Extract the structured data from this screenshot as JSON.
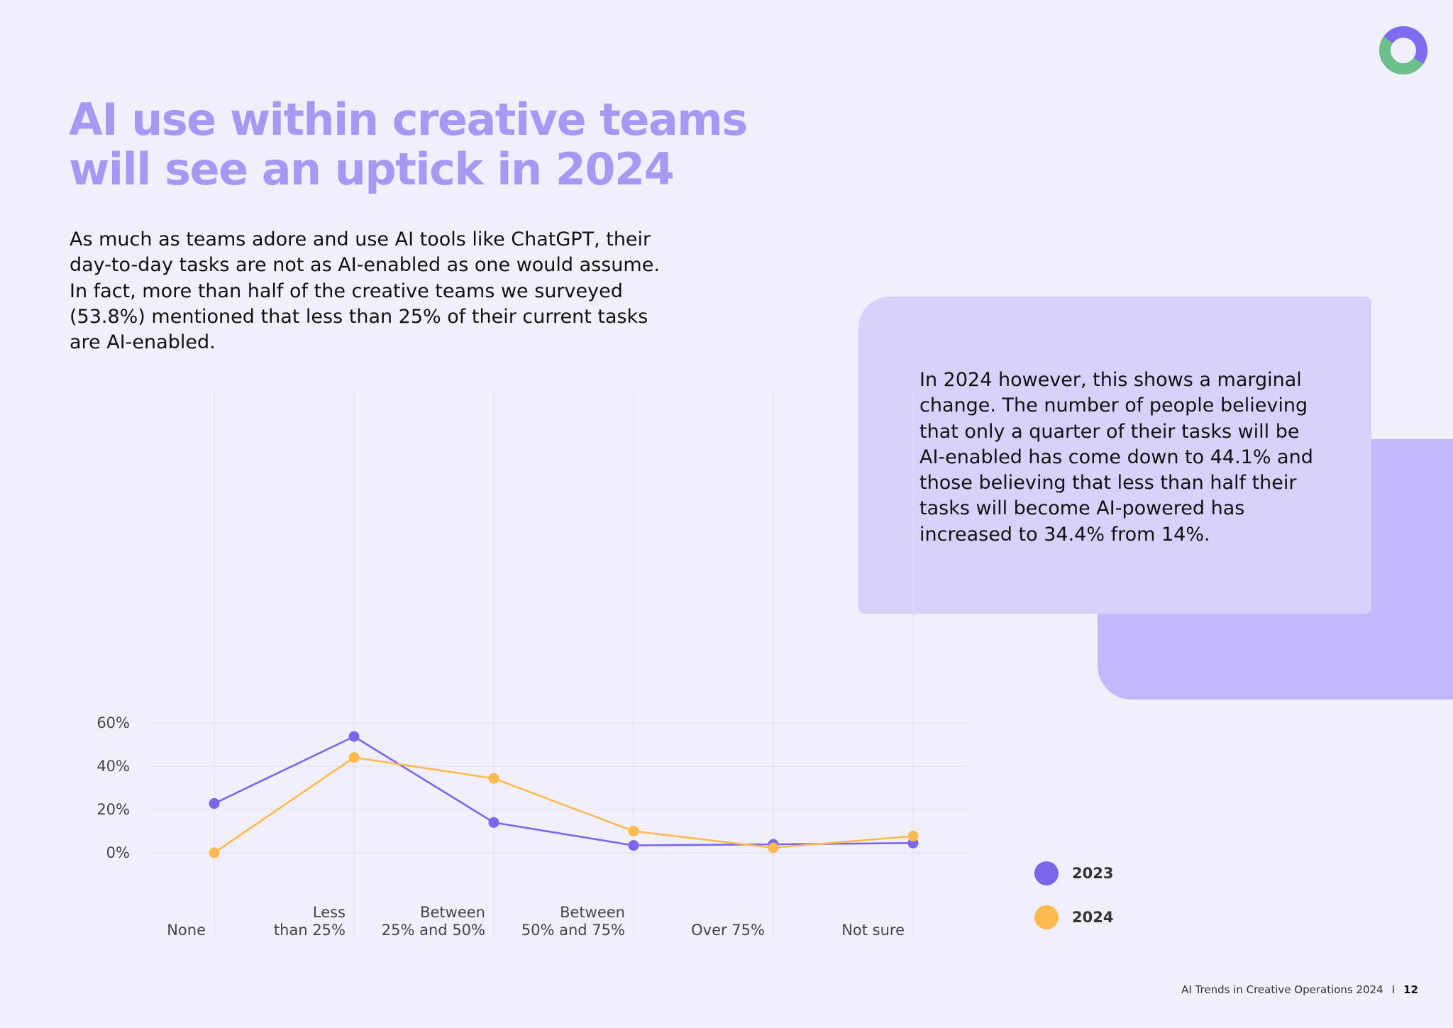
{
  "title_lines": [
    "AI use within creative teams",
    "will see an uptick in 2024"
  ],
  "intro_lines": [
    "As much as teams adore and use AI tools like ChatGPT, their",
    "day-to-day tasks are not as AI-enabled as one would assume.",
    "In fact, more than half of the creative teams we surveyed",
    "(53.8%) mentioned that less than 25% of their current tasks",
    "are AI-enabled."
  ],
  "callout_lines": [
    "In 2024 however, this shows a marginal",
    "change. The number of people believing",
    "that only a quarter of their tasks will be",
    "AI-enabled has come down to 44.1% and",
    "those believing that less than half their",
    "tasks will become AI-powered has",
    "increased to 34.4% from 14%."
  ],
  "logo": {
    "icon": "ring-logo-icon",
    "colors": [
      "#7d6cf0",
      "#6dbf8a"
    ]
  },
  "colors": {
    "title": "#a898f4",
    "callout_bg": "#d8d1fc",
    "deco_bg": "#c2b8fa",
    "series_2023": "#7b66ea",
    "series_2024": "#fdbb4f"
  },
  "chart_data": {
    "type": "line",
    "title": "",
    "xlabel": "",
    "ylabel": "",
    "categories": [
      [
        "None"
      ],
      [
        "Less",
        "than 25%"
      ],
      [
        "Between",
        "25% and 50%"
      ],
      [
        "Between",
        "50% and 75%"
      ],
      [
        "Over 75%"
      ],
      [
        "Not sure"
      ]
    ],
    "y_ticks": [
      0,
      20,
      40,
      60
    ],
    "y_tick_labels": [
      "0%",
      "20%",
      "40%",
      "60%"
    ],
    "ylim": [
      0,
      60
    ],
    "grid": true,
    "legend_position": "bottom-right",
    "series": [
      {
        "name": "2023",
        "color": "#7b66ea",
        "values": [
          22.8,
          53.8,
          14.0,
          3.4,
          3.9,
          4.5
        ]
      },
      {
        "name": "2024",
        "color": "#fdbb4f",
        "values": [
          0,
          44.1,
          34.4,
          10.0,
          2.3,
          7.7
        ]
      }
    ]
  },
  "legend": [
    {
      "label": "2023",
      "color": "#7b66ea"
    },
    {
      "label": "2024",
      "color": "#fdbb4f"
    }
  ],
  "footer": {
    "text": "AI Trends in Creative Operations 2024",
    "separator": "I",
    "page": "12"
  }
}
